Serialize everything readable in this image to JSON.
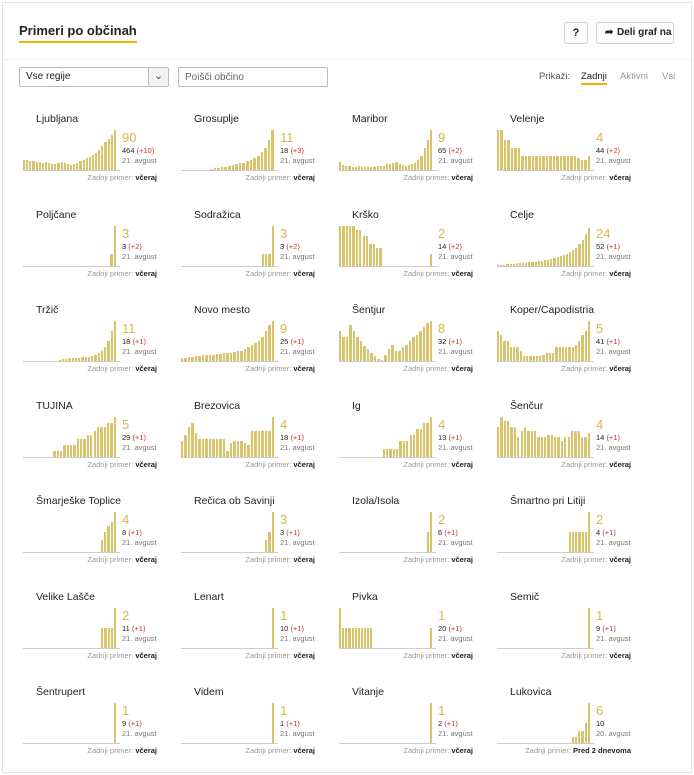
{
  "header": {
    "title": "Primeri po občinah",
    "help_label": "?",
    "share_label": "Deli graf na"
  },
  "controls": {
    "region_select": "Vse regije",
    "search_placeholder": "Poišči občino",
    "show_label": "Prikaži:",
    "filters": [
      {
        "label": "Zadnji",
        "active": true
      },
      {
        "label": "Aktivni",
        "active": false
      },
      {
        "label": "Vsi",
        "active": false
      }
    ]
  },
  "colors": {
    "accent": "#f0b400",
    "bar": "#d9c36b",
    "number": "#d4b84a",
    "delta": "#c0392b"
  },
  "last_case_label": "Zadnji primer:",
  "municipalities": [
    {
      "name": "Ljubljana",
      "big": "90",
      "total": "464",
      "delta": "(+10)",
      "date": "21. avgust",
      "last": "včeraj",
      "bars": [
        10,
        10,
        9,
        9,
        8,
        8,
        7,
        8,
        7,
        6,
        6,
        7,
        8,
        7,
        6,
        5,
        6,
        7,
        9,
        10,
        12,
        13,
        15,
        17,
        20,
        24,
        28,
        31,
        35,
        40
      ]
    },
    {
      "name": "Grosuplje",
      "big": "11",
      "total": "18",
      "delta": "(+3)",
      "date": "21. avgust",
      "last": "včeraj",
      "bars": [
        0,
        0,
        0,
        0,
        0,
        0,
        0,
        0,
        1,
        2,
        2,
        3,
        3,
        4,
        5,
        6,
        7,
        7,
        9,
        10,
        12,
        14,
        18,
        22,
        30,
        40
      ]
    },
    {
      "name": "Maribor",
      "big": "9",
      "total": "65",
      "delta": "(+2)",
      "date": "21. avgust",
      "last": "včeraj",
      "bars": [
        8,
        5,
        4,
        4,
        3,
        3,
        4,
        3,
        3,
        3,
        3,
        3,
        4,
        4,
        4,
        6,
        6,
        7,
        8,
        6,
        5,
        4,
        5,
        6,
        7,
        10,
        14,
        22,
        30,
        40
      ]
    },
    {
      "name": "Velenje",
      "big": "4",
      "total": "44",
      "delta": "(+2)",
      "date": "21. avgust",
      "last": "včeraj",
      "bars": [
        40,
        40,
        30,
        30,
        22,
        22,
        22,
        14,
        14,
        14,
        14,
        14,
        14,
        14,
        14,
        14,
        14,
        14,
        14,
        14,
        14,
        14,
        14,
        12,
        10,
        10,
        14
      ]
    },
    {
      "name": "Poljčane",
      "big": "3",
      "total": "3",
      "delta": "(+2)",
      "date": "21. avgust",
      "last": "včeraj",
      "bars": [
        0,
        0,
        0,
        0,
        0,
        0,
        0,
        0,
        0,
        0,
        0,
        0,
        0,
        0,
        0,
        0,
        0,
        0,
        0,
        0,
        0,
        0,
        0,
        0,
        0,
        0,
        12,
        40
      ]
    },
    {
      "name": "Sodražica",
      "big": "3",
      "total": "3",
      "delta": "(+2)",
      "date": "21. avgust",
      "last": "včeraj",
      "bars": [
        0,
        0,
        0,
        0,
        0,
        0,
        0,
        0,
        0,
        0,
        0,
        0,
        0,
        0,
        0,
        0,
        0,
        0,
        0,
        0,
        0,
        0,
        0,
        0,
        12,
        12,
        12,
        40
      ]
    },
    {
      "name": "Krško",
      "big": "2",
      "total": "14",
      "delta": "(+2)",
      "date": "21. avgust",
      "last": "včeraj",
      "bars": [
        40,
        40,
        40,
        40,
        40,
        36,
        36,
        30,
        30,
        22,
        22,
        18,
        18,
        0,
        0,
        0,
        0,
        0,
        0,
        0,
        0,
        0,
        0,
        0,
        0,
        0,
        0,
        12
      ]
    },
    {
      "name": "Celje",
      "big": "24",
      "total": "52",
      "delta": "(+1)",
      "date": "21. avgust",
      "last": "včeraj",
      "bars": [
        1,
        1,
        1,
        2,
        2,
        2,
        3,
        3,
        3,
        3,
        4,
        4,
        4,
        5,
        5,
        6,
        6,
        7,
        8,
        9,
        10,
        11,
        12,
        14,
        16,
        18,
        22,
        26,
        32,
        38
      ]
    },
    {
      "name": "Tržič",
      "big": "11",
      "total": "18",
      "delta": "(+1)",
      "date": "21. avgust",
      "last": "včeraj",
      "bars": [
        0,
        0,
        0,
        0,
        0,
        0,
        0,
        0,
        0,
        0,
        0,
        1,
        2,
        2,
        3,
        3,
        3,
        3,
        4,
        4,
        4,
        5,
        6,
        8,
        10,
        14,
        20,
        30,
        40
      ]
    },
    {
      "name": "Novo mesto",
      "big": "9",
      "total": "25",
      "delta": "(+1)",
      "date": "21. avgust",
      "last": "včeraj",
      "bars": [
        3,
        3,
        4,
        4,
        5,
        5,
        6,
        6,
        6,
        6,
        7,
        7,
        8,
        8,
        8,
        9,
        10,
        10,
        12,
        14,
        16,
        18,
        20,
        24,
        30,
        36,
        40
      ]
    },
    {
      "name": "Šentjur",
      "big": "8",
      "total": "32",
      "delta": "(+1)",
      "date": "21. avgust",
      "last": "včeraj",
      "bars": [
        30,
        24,
        24,
        36,
        30,
        24,
        20,
        15,
        12,
        8,
        5,
        2,
        1,
        6,
        12,
        16,
        10,
        10,
        14,
        16,
        20,
        24,
        26,
        30,
        34,
        38,
        40
      ]
    },
    {
      "name": "Koper/Capodistria",
      "big": "5",
      "total": "41",
      "delta": "(+1)",
      "date": "21. avgust",
      "last": "včeraj",
      "bars": [
        30,
        26,
        20,
        20,
        14,
        14,
        14,
        10,
        5,
        5,
        5,
        5,
        5,
        5,
        6,
        8,
        8,
        8,
        14,
        14,
        14,
        14,
        14,
        14,
        16,
        20,
        26,
        30,
        40
      ]
    },
    {
      "name": "TUJINA",
      "big": "5",
      "total": "29",
      "delta": "(+1)",
      "date": "21. avgust",
      "last": "včeraj",
      "bars": [
        0,
        0,
        0,
        0,
        0,
        0,
        0,
        0,
        0,
        6,
        6,
        6,
        12,
        12,
        12,
        12,
        18,
        18,
        18,
        22,
        22,
        26,
        30,
        30,
        30,
        34,
        34,
        40
      ]
    },
    {
      "name": "Brezovica",
      "big": "4",
      "total": "18",
      "delta": "(+1)",
      "date": "21. avgust",
      "last": "včeraj",
      "bars": [
        16,
        22,
        30,
        34,
        24,
        18,
        18,
        18,
        18,
        18,
        18,
        18,
        18,
        6,
        14,
        16,
        16,
        16,
        14,
        12,
        26,
        26,
        26,
        26,
        26,
        26,
        40
      ]
    },
    {
      "name": "Ig",
      "big": "4",
      "total": "13",
      "delta": "(+1)",
      "date": "21. avgust",
      "last": "včeraj",
      "bars": [
        0,
        0,
        0,
        0,
        0,
        0,
        0,
        0,
        0,
        0,
        0,
        0,
        0,
        8,
        8,
        8,
        8,
        8,
        16,
        16,
        16,
        22,
        22,
        28,
        28,
        34,
        34,
        40
      ]
    },
    {
      "name": "Šenčur",
      "big": "4",
      "total": "14",
      "delta": "(+1)",
      "date": "21. avgust",
      "last": "včeraj",
      "bars": [
        30,
        40,
        36,
        36,
        30,
        30,
        20,
        26,
        30,
        26,
        26,
        26,
        20,
        20,
        20,
        22,
        22,
        20,
        20,
        16,
        20,
        20,
        26,
        26,
        26,
        20,
        20,
        24
      ]
    },
    {
      "name": "Šmarješke Toplice",
      "big": "4",
      "total": "8",
      "delta": "(+1)",
      "date": "21. avgust",
      "last": "včeraj",
      "bars": [
        0,
        0,
        0,
        0,
        0,
        0,
        0,
        0,
        0,
        0,
        0,
        0,
        0,
        0,
        0,
        0,
        0,
        0,
        0,
        0,
        0,
        0,
        0,
        0,
        12,
        20,
        26,
        30,
        40
      ]
    },
    {
      "name": "Rečica ob Savinji",
      "big": "3",
      "total": "3",
      "delta": "(+1)",
      "date": "21. avgust",
      "last": "včeraj",
      "bars": [
        0,
        0,
        0,
        0,
        0,
        0,
        0,
        0,
        0,
        0,
        0,
        0,
        0,
        0,
        0,
        0,
        0,
        0,
        0,
        0,
        0,
        0,
        0,
        0,
        12,
        20,
        40
      ]
    },
    {
      "name": "Izola/Isola",
      "big": "2",
      "total": "6",
      "delta": "(+1)",
      "date": "21. avgust",
      "last": "včeraj",
      "bars": [
        0,
        0,
        0,
        0,
        0,
        0,
        0,
        0,
        0,
        0,
        0,
        0,
        0,
        0,
        0,
        0,
        0,
        0,
        0,
        0,
        0,
        0,
        0,
        0,
        0,
        0,
        0,
        0,
        20,
        40
      ]
    },
    {
      "name": "Šmartno pri Litiji",
      "big": "2",
      "total": "4",
      "delta": "(+1)",
      "date": "21. avgust",
      "last": "včeraj",
      "bars": [
        0,
        0,
        0,
        0,
        0,
        0,
        0,
        0,
        0,
        0,
        0,
        0,
        0,
        0,
        0,
        0,
        0,
        0,
        0,
        0,
        0,
        0,
        0,
        20,
        20,
        20,
        20,
        20,
        20,
        40
      ]
    },
    {
      "name": "Velike Lašče",
      "big": "2",
      "total": "11",
      "delta": "(+1)",
      "date": "21. avgust",
      "last": "včeraj",
      "bars": [
        0,
        0,
        0,
        0,
        0,
        0,
        0,
        0,
        0,
        0,
        0,
        0,
        0,
        0,
        0,
        0,
        0,
        0,
        0,
        0,
        0,
        0,
        0,
        0,
        0,
        20,
        20,
        20,
        20,
        40
      ]
    },
    {
      "name": "Lenart",
      "big": "1",
      "total": "10",
      "delta": "(+1)",
      "date": "21. avgust",
      "last": "včeraj",
      "bars": [
        0,
        0,
        0,
        0,
        0,
        0,
        0,
        0,
        0,
        0,
        0,
        0,
        0,
        0,
        0,
        0,
        0,
        0,
        0,
        0,
        0,
        0,
        0,
        0,
        0,
        0,
        0,
        0,
        0,
        40
      ]
    },
    {
      "name": "Pivka",
      "big": "1",
      "total": "20",
      "delta": "(+1)",
      "date": "21. avgust",
      "last": "včeraj",
      "bars": [
        40,
        20,
        20,
        20,
        20,
        20,
        20,
        20,
        20,
        20,
        20,
        0,
        0,
        0,
        0,
        0,
        0,
        0,
        0,
        0,
        0,
        0,
        0,
        0,
        0,
        0,
        0,
        0,
        0,
        20
      ]
    },
    {
      "name": "Semič",
      "big": "1",
      "total": "9",
      "delta": "(+1)",
      "date": "21. avgust",
      "last": "včeraj",
      "bars": [
        0,
        0,
        0,
        0,
        0,
        0,
        0,
        0,
        0,
        0,
        0,
        0,
        0,
        0,
        0,
        0,
        0,
        0,
        0,
        0,
        0,
        0,
        0,
        0,
        0,
        0,
        0,
        0,
        0,
        40
      ]
    },
    {
      "name": "Šentrupert",
      "big": "1",
      "total": "9",
      "delta": "(+1)",
      "date": "21. avgust",
      "last": "včeraj",
      "bars": [
        0,
        0,
        0,
        0,
        0,
        0,
        0,
        0,
        0,
        0,
        0,
        0,
        0,
        0,
        0,
        0,
        0,
        0,
        0,
        0,
        0,
        0,
        0,
        0,
        0,
        0,
        0,
        0,
        0,
        40
      ]
    },
    {
      "name": "Videm",
      "big": "1",
      "total": "1",
      "delta": "(+1)",
      "date": "21. avgust",
      "last": "včeraj",
      "bars": [
        0,
        0,
        0,
        0,
        0,
        0,
        0,
        0,
        0,
        0,
        0,
        0,
        0,
        0,
        0,
        0,
        0,
        0,
        0,
        0,
        0,
        0,
        0,
        0,
        0,
        0,
        0,
        0,
        0,
        40
      ]
    },
    {
      "name": "Vitanje",
      "big": "1",
      "total": "2",
      "delta": "(+1)",
      "date": "21. avgust",
      "last": "včeraj",
      "bars": [
        0,
        0,
        0,
        0,
        0,
        0,
        0,
        0,
        0,
        0,
        0,
        0,
        0,
        0,
        0,
        0,
        0,
        0,
        0,
        0,
        0,
        0,
        0,
        0,
        0,
        0,
        0,
        0,
        0,
        40
      ]
    },
    {
      "name": "Lukovica",
      "big": "6",
      "total": "10",
      "delta": "",
      "date": "20. avgust",
      "last": "Pred 2 dnevoma",
      "bars": [
        0,
        0,
        0,
        0,
        0,
        0,
        0,
        0,
        0,
        0,
        0,
        0,
        0,
        0,
        0,
        0,
        0,
        0,
        0,
        0,
        0,
        0,
        0,
        6,
        6,
        12,
        12,
        20,
        40
      ]
    }
  ]
}
